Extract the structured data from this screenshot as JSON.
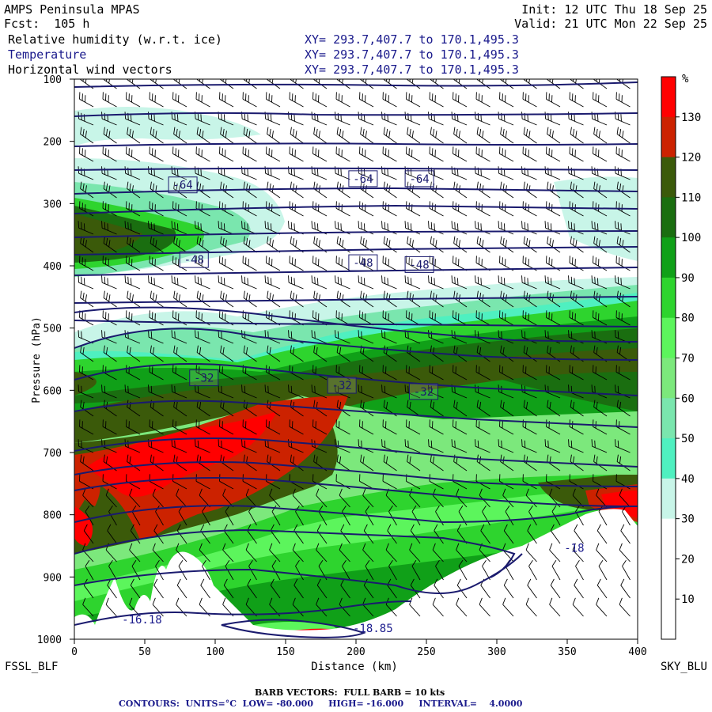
{
  "header": {
    "model": "AMPS Peninsula MPAS",
    "fcst": "Fcst:  105 h",
    "init": "Init: 12 UTC Thu 18 Sep 25",
    "valid": "Valid: 21 UTC Mon 22 Sep 25",
    "fields": [
      {
        "name": "Relative humidity (w.r.t. ice)",
        "xy": "XY= 293.7,407.7 to 170.1,495.3"
      },
      {
        "name": "Temperature",
        "xy": "XY= 293.7,407.7 to 170.1,495.3"
      },
      {
        "name": "Horizontal wind vectors",
        "xy": "XY= 293.7,407.7 to 170.1,495.3"
      }
    ]
  },
  "axes": {
    "ylabel": "Pressure (hPa)",
    "xlabel": "Distance (km)",
    "left_station": "FSSL_BLF",
    "right_station": "SKY_BLU"
  },
  "colorbar": {
    "unit": "%",
    "labels": [
      "130",
      "120",
      "110",
      "100",
      "90",
      "80",
      "70",
      "60",
      "50",
      "40",
      "30",
      "20",
      "10"
    ],
    "colors": [
      "#ff0000",
      "#cc2200",
      "#3b5a0a",
      "#1a6e10",
      "#10a018",
      "#2ed42e",
      "#5cf55c",
      "#7ce87c",
      "#7ae6ae",
      "#4ff0c0",
      "#c8f5e8",
      "#ffffff",
      "#ffffff",
      "#ffffff"
    ]
  },
  "footer": {
    "barbs": "BARB VECTORS:  FULL BARB = 10 kts",
    "contours": "CONTOURS:  UNITS=°C  LOW= -80.000     HIGH= -16.000     INTERVAL=    4.0000"
  },
  "chart_data": {
    "type": "heatmap",
    "x": {
      "label": "Distance (km)",
      "range": [
        0,
        400
      ],
      "ticks": [
        "0",
        "50",
        "100",
        "150",
        "200",
        "250",
        "300",
        "350",
        "400"
      ]
    },
    "y": {
      "label": "Pressure (hPa)",
      "range": [
        100,
        1000
      ],
      "ticks": [
        "100",
        "200",
        "300",
        "400",
        "500",
        "600",
        "700",
        "800",
        "900",
        "1000"
      ],
      "inverted": true
    },
    "temperature_contour_labels": [
      {
        "text": "-64",
        "x": 77,
        "p": 270
      },
      {
        "text": "-64",
        "x": 205,
        "p": 260
      },
      {
        "text": "-64",
        "x": 245,
        "p": 260
      },
      {
        "text": "-48",
        "x": 85,
        "p": 390
      },
      {
        "text": "-48",
        "x": 205,
        "p": 395
      },
      {
        "text": "-48",
        "x": 245,
        "p": 398
      },
      {
        "text": "-32",
        "x": 92,
        "p": 580
      },
      {
        "text": "-32",
        "x": 190,
        "p": 592
      },
      {
        "text": "-32",
        "x": 248,
        "p": 602
      }
    ],
    "extrema_labels": [
      {
        "text": "-16.18",
        "x": 48,
        "p": 968
      },
      {
        "text": "-18.85",
        "x": 212,
        "p": 982
      },
      {
        "text": "-18",
        "x": 355,
        "p": 853
      }
    ]
  }
}
